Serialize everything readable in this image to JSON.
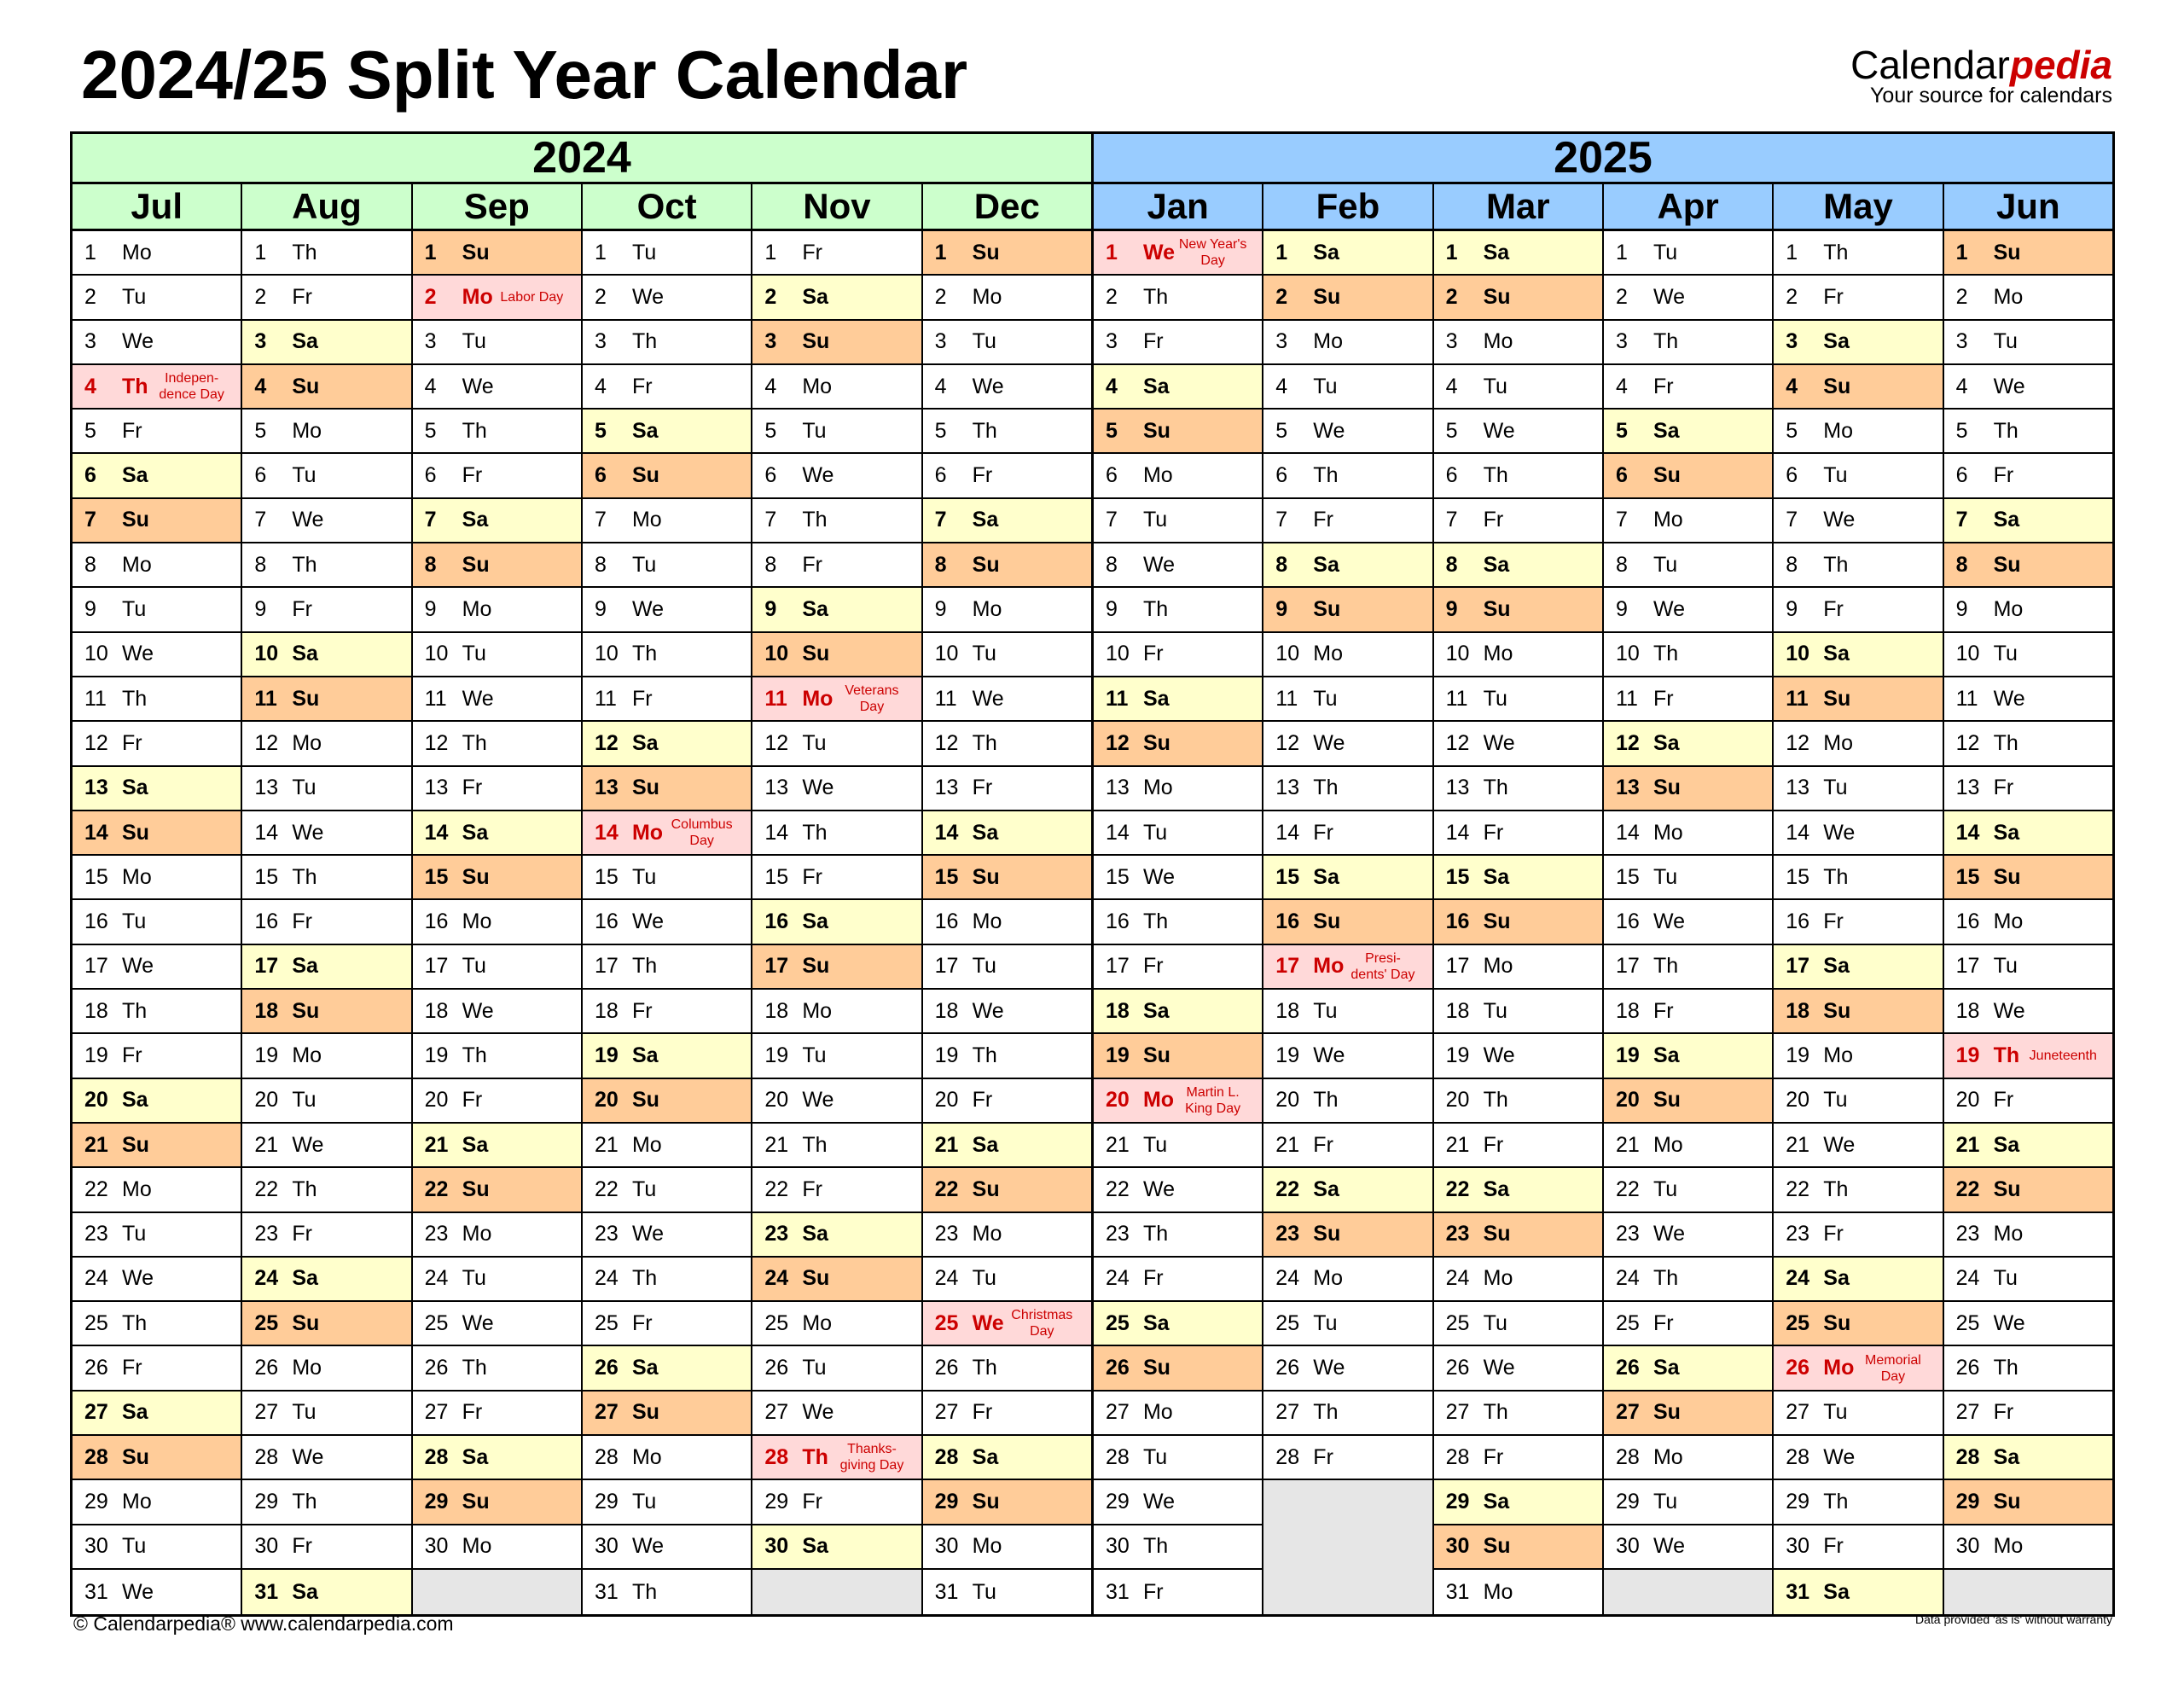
{
  "title": "2024/25 Split Year Calendar",
  "logo": {
    "brand_a": "Calendar",
    "brand_b": "pedia",
    "tagline": "Your source for calendars"
  },
  "colors": {
    "year1": "#ccffcc",
    "year2": "#99ccff",
    "saturday": "#ffffcc",
    "sunday": "#ffcc99",
    "holiday": "#ffd9d9",
    "holiday_text": "#cc0000",
    "empty": "#e6e6e6"
  },
  "years": [
    "2024",
    "2025"
  ],
  "months": [
    {
      "name": "Jul",
      "year": 0,
      "weekdays": [
        "Mo",
        "Tu",
        "We",
        "Th",
        "Fr",
        "Sa",
        "Su",
        "Mo",
        "Tu",
        "We",
        "Th",
        "Fr",
        "Sa",
        "Su",
        "Mo",
        "Tu",
        "We",
        "Th",
        "Fr",
        "Sa",
        "Su",
        "Mo",
        "Tu",
        "We",
        "Th",
        "Fr",
        "Sa",
        "Su",
        "Mo",
        "Tu",
        "We"
      ],
      "holidays": {
        "4": [
          "Indepen-",
          "dence Day"
        ]
      }
    },
    {
      "name": "Aug",
      "year": 0,
      "weekdays": [
        "Th",
        "Fr",
        "Sa",
        "Su",
        "Mo",
        "Tu",
        "We",
        "Th",
        "Fr",
        "Sa",
        "Su",
        "Mo",
        "Tu",
        "We",
        "Th",
        "Fr",
        "Sa",
        "Su",
        "Mo",
        "Tu",
        "We",
        "Th",
        "Fr",
        "Sa",
        "Su",
        "Mo",
        "Tu",
        "We",
        "Th",
        "Fr",
        "Sa"
      ],
      "holidays": {}
    },
    {
      "name": "Sep",
      "year": 0,
      "weekdays": [
        "Su",
        "Mo",
        "Tu",
        "We",
        "Th",
        "Fr",
        "Sa",
        "Su",
        "Mo",
        "Tu",
        "We",
        "Th",
        "Fr",
        "Sa",
        "Su",
        "Mo",
        "Tu",
        "We",
        "Th",
        "Fr",
        "Sa",
        "Su",
        "Mo",
        "Tu",
        "We",
        "Th",
        "Fr",
        "Sa",
        "Su",
        "Mo"
      ],
      "holidays": {
        "2": [
          "Labor Day"
        ]
      }
    },
    {
      "name": "Oct",
      "year": 0,
      "weekdays": [
        "Tu",
        "We",
        "Th",
        "Fr",
        "Sa",
        "Su",
        "Mo",
        "Tu",
        "We",
        "Th",
        "Fr",
        "Sa",
        "Su",
        "Mo",
        "Tu",
        "We",
        "Th",
        "Fr",
        "Sa",
        "Su",
        "Mo",
        "Tu",
        "We",
        "Th",
        "Fr",
        "Sa",
        "Su",
        "Mo",
        "Tu",
        "We",
        "Th"
      ],
      "holidays": {
        "14": [
          "Columbus",
          "Day"
        ]
      }
    },
    {
      "name": "Nov",
      "year": 0,
      "weekdays": [
        "Fr",
        "Sa",
        "Su",
        "Mo",
        "Tu",
        "We",
        "Th",
        "Fr",
        "Sa",
        "Su",
        "Mo",
        "Tu",
        "We",
        "Th",
        "Fr",
        "Sa",
        "Su",
        "Mo",
        "Tu",
        "We",
        "Th",
        "Fr",
        "Sa",
        "Su",
        "Mo",
        "Tu",
        "We",
        "Th",
        "Fr",
        "Sa"
      ],
      "holidays": {
        "11": [
          "Veterans",
          "Day"
        ],
        "28": [
          "Thanks-",
          "giving Day"
        ]
      }
    },
    {
      "name": "Dec",
      "year": 0,
      "weekdays": [
        "Su",
        "Mo",
        "Tu",
        "We",
        "Th",
        "Fr",
        "Sa",
        "Su",
        "Mo",
        "Tu",
        "We",
        "Th",
        "Fr",
        "Sa",
        "Su",
        "Mo",
        "Tu",
        "We",
        "Th",
        "Fr",
        "Sa",
        "Su",
        "Mo",
        "Tu",
        "We",
        "Th",
        "Fr",
        "Sa",
        "Su",
        "Mo",
        "Tu"
      ],
      "holidays": {
        "25": [
          "Christmas",
          "Day"
        ]
      }
    },
    {
      "name": "Jan",
      "year": 1,
      "weekdays": [
        "We",
        "Th",
        "Fr",
        "Sa",
        "Su",
        "Mo",
        "Tu",
        "We",
        "Th",
        "Fr",
        "Sa",
        "Su",
        "Mo",
        "Tu",
        "We",
        "Th",
        "Fr",
        "Sa",
        "Su",
        "Mo",
        "Tu",
        "We",
        "Th",
        "Fr",
        "Sa",
        "Su",
        "Mo",
        "Tu",
        "We",
        "Th",
        "Fr"
      ],
      "holidays": {
        "1": [
          "New Year's",
          "Day"
        ],
        "20": [
          "Martin L.",
          "King Day"
        ]
      }
    },
    {
      "name": "Feb",
      "year": 1,
      "weekdays": [
        "Sa",
        "Su",
        "Mo",
        "Tu",
        "We",
        "Th",
        "Fr",
        "Sa",
        "Su",
        "Mo",
        "Tu",
        "We",
        "Th",
        "Fr",
        "Sa",
        "Su",
        "Mo",
        "Tu",
        "We",
        "Th",
        "Fr",
        "Sa",
        "Su",
        "Mo",
        "Tu",
        "We",
        "Th",
        "Fr"
      ],
      "holidays": {
        "17": [
          "Presi-",
          "dents' Day"
        ]
      }
    },
    {
      "name": "Mar",
      "year": 1,
      "weekdays": [
        "Sa",
        "Su",
        "Mo",
        "Tu",
        "We",
        "Th",
        "Fr",
        "Sa",
        "Su",
        "Mo",
        "Tu",
        "We",
        "Th",
        "Fr",
        "Sa",
        "Su",
        "Mo",
        "Tu",
        "We",
        "Th",
        "Fr",
        "Sa",
        "Su",
        "Mo",
        "Tu",
        "We",
        "Th",
        "Fr",
        "Sa",
        "Su",
        "Mo"
      ],
      "holidays": {}
    },
    {
      "name": "Apr",
      "year": 1,
      "weekdays": [
        "Tu",
        "We",
        "Th",
        "Fr",
        "Sa",
        "Su",
        "Mo",
        "Tu",
        "We",
        "Th",
        "Fr",
        "Sa",
        "Su",
        "Mo",
        "Tu",
        "We",
        "Th",
        "Fr",
        "Sa",
        "Su",
        "Mo",
        "Tu",
        "We",
        "Th",
        "Fr",
        "Sa",
        "Su",
        "Mo",
        "Tu",
        "We"
      ],
      "holidays": {}
    },
    {
      "name": "May",
      "year": 1,
      "weekdays": [
        "Th",
        "Fr",
        "Sa",
        "Su",
        "Mo",
        "Tu",
        "We",
        "Th",
        "Fr",
        "Sa",
        "Su",
        "Mo",
        "Tu",
        "We",
        "Th",
        "Fr",
        "Sa",
        "Su",
        "Mo",
        "Tu",
        "We",
        "Th",
        "Fr",
        "Sa",
        "Su",
        "Mo",
        "Tu",
        "We",
        "Th",
        "Fr",
        "Sa"
      ],
      "holidays": {
        "26": [
          "Memorial",
          "Day"
        ]
      }
    },
    {
      "name": "Jun",
      "year": 1,
      "weekdays": [
        "Su",
        "Mo",
        "Tu",
        "We",
        "Th",
        "Fr",
        "Sa",
        "Su",
        "Mo",
        "Tu",
        "We",
        "Th",
        "Fr",
        "Sa",
        "Su",
        "Mo",
        "Tu",
        "We",
        "Th",
        "Fr",
        "Sa",
        "Su",
        "Mo",
        "Tu",
        "We",
        "Th",
        "Fr",
        "Sa",
        "Su",
        "Mo"
      ],
      "holidays": {
        "19": [
          "Juneteenth"
        ]
      }
    }
  ],
  "footer": {
    "copyright": "© Calendarpedia®   www.calendarpedia.com",
    "disclaimer": "Data provided 'as is' without warranty"
  }
}
